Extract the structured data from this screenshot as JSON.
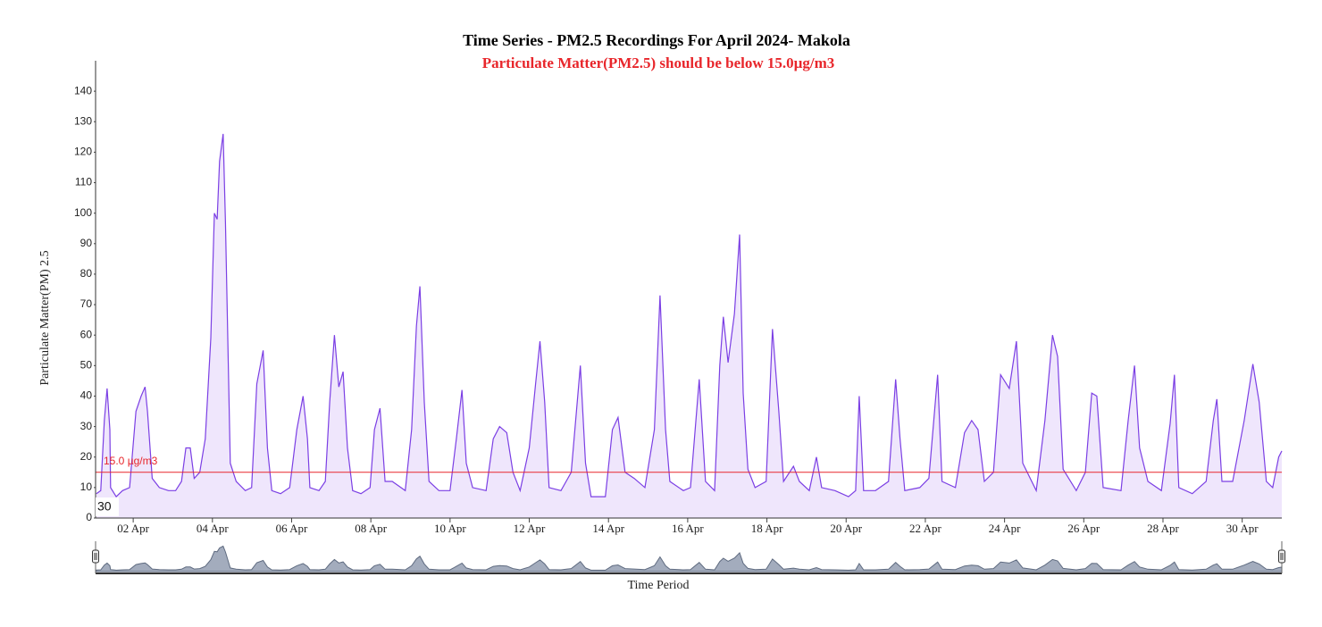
{
  "chart_data": {
    "type": "line",
    "title": "Time Series - PM2.5 Recordings For April 2024- Makola",
    "subtitle": "Particulate Matter(PM2.5) should be below 15.0µg/m3",
    "y_label": "Particulate Matter(PM) 2.5",
    "x_label": "Time Period",
    "corner_label": "30",
    "color": "#7b3fe4",
    "fill": "#efe6fc",
    "threshold": {
      "value": 15,
      "label": "15.0 µg/m3",
      "color": "#e8262b"
    },
    "xlim": [
      1.05,
      31
    ],
    "xticks": [
      {
        "value": 2,
        "label": "02 Apr"
      },
      {
        "value": 4,
        "label": "04 Apr"
      },
      {
        "value": 6,
        "label": "06 Apr"
      },
      {
        "value": 8,
        "label": "08 Apr"
      },
      {
        "value": 10,
        "label": "10 Apr"
      },
      {
        "value": 12,
        "label": "12 Apr"
      },
      {
        "value": 14,
        "label": "14 Apr"
      },
      {
        "value": 16,
        "label": "16 Apr"
      },
      {
        "value": 18,
        "label": "18 Apr"
      },
      {
        "value": 20,
        "label": "20 Apr"
      },
      {
        "value": 22,
        "label": "22 Apr"
      },
      {
        "value": 24,
        "label": "24 Apr"
      },
      {
        "value": 26,
        "label": "26 Apr"
      },
      {
        "value": 28,
        "label": "28 Apr"
      },
      {
        "value": 30,
        "label": "30 Apr"
      }
    ],
    "ylim": [
      0,
      150
    ],
    "yticks": [
      0,
      10,
      20,
      30,
      40,
      50,
      60,
      70,
      80,
      90,
      100,
      110,
      120,
      130,
      140
    ],
    "x": [
      1.07,
      1.18,
      1.27,
      1.34,
      1.41,
      1.43,
      1.57,
      1.73,
      1.91,
      2.07,
      2.2,
      2.3,
      2.36,
      2.48,
      2.66,
      2.89,
      3.07,
      3.22,
      3.33,
      3.44,
      3.54,
      3.68,
      3.82,
      3.96,
      4.05,
      4.12,
      4.18,
      4.27,
      4.33,
      4.45,
      4.6,
      4.83,
      4.99,
      5.12,
      5.28,
      5.39,
      5.5,
      5.72,
      5.95,
      6.13,
      6.29,
      6.4,
      6.46,
      6.69,
      6.85,
      6.96,
      7.08,
      7.19,
      7.3,
      7.41,
      7.54,
      7.75,
      7.98,
      8.09,
      8.23,
      8.36,
      8.54,
      8.87,
      9.03,
      9.15,
      9.24,
      9.35,
      9.47,
      9.72,
      10.0,
      10.16,
      10.3,
      10.41,
      10.57,
      10.91,
      11.09,
      11.25,
      11.43,
      11.59,
      11.77,
      12.0,
      12.16,
      12.27,
      12.39,
      12.5,
      12.8,
      13.06,
      13.29,
      13.42,
      13.56,
      13.92,
      14.1,
      14.24,
      14.42,
      14.65,
      14.92,
      15.16,
      15.3,
      15.44,
      15.55,
      15.89,
      16.07,
      16.29,
      16.45,
      16.68,
      16.81,
      16.9,
      17.02,
      17.18,
      17.31,
      17.4,
      17.52,
      17.7,
      17.98,
      18.14,
      18.3,
      18.42,
      18.67,
      18.82,
      19.07,
      19.25,
      19.38,
      19.72,
      20.06,
      20.24,
      20.33,
      20.44,
      20.74,
      21.07,
      21.25,
      21.36,
      21.48,
      21.86,
      22.09,
      22.31,
      22.42,
      22.76,
      22.99,
      23.17,
      23.33,
      23.49,
      23.72,
      23.9,
      24.12,
      24.3,
      24.46,
      24.8,
      25.02,
      25.21,
      25.34,
      25.48,
      25.81,
      26.04,
      26.2,
      26.33,
      26.49,
      26.94,
      27.12,
      27.28,
      27.41,
      27.62,
      27.96,
      28.18,
      28.29,
      28.4,
      28.74,
      29.09,
      29.27,
      29.36,
      29.49,
      29.76,
      30.05,
      30.27,
      30.43,
      30.61,
      30.77,
      30.92,
      31.0
    ],
    "values": [
      8,
      9,
      32,
      42.5,
      29,
      10,
      7,
      9,
      10,
      35,
      40,
      43,
      35,
      13,
      10,
      9,
      9,
      12,
      23,
      23,
      13,
      15,
      26,
      59,
      100,
      98,
      117,
      126,
      97,
      18,
      12,
      9,
      10,
      44,
      55,
      23,
      9,
      8,
      10,
      29,
      40,
      26,
      10,
      9,
      12,
      38,
      60,
      43,
      48,
      23,
      9,
      8,
      10,
      29,
      36,
      12,
      12,
      9,
      29,
      63,
      76,
      38,
      12,
      9,
      9,
      26,
      42,
      18,
      10,
      9,
      26,
      30,
      28,
      15,
      9,
      23,
      44,
      58,
      38,
      10,
      9,
      15,
      50,
      18,
      7,
      7,
      29,
      33,
      15,
      13,
      10,
      29,
      73,
      29,
      12,
      9,
      10,
      45.5,
      12,
      9,
      50,
      66,
      51,
      67,
      93,
      41,
      16,
      10,
      12,
      62,
      35,
      12,
      17,
      12,
      9,
      20,
      10,
      9,
      7,
      9,
      40,
      9,
      9,
      12,
      45.5,
      26,
      9,
      10,
      13,
      47,
      12,
      10,
      28,
      32,
      29,
      12,
      15,
      47,
      42.5,
      58,
      18,
      9,
      32,
      60,
      53,
      16,
      9,
      15,
      41,
      40,
      10,
      9,
      32,
      50,
      23,
      12,
      9,
      31,
      47,
      10,
      8,
      12,
      32,
      39,
      12,
      12,
      32,
      50.5,
      38,
      12,
      10,
      20,
      22
    ]
  }
}
